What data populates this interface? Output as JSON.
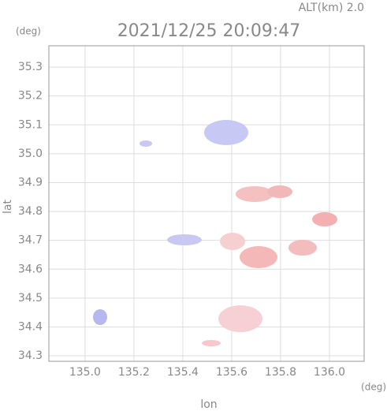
{
  "chart_data": {
    "type": "map",
    "title": "2021/12/25 20:09:47",
    "subtitle": "ALT(km) 2.0",
    "x_label": "lon",
    "y_label": "lat",
    "x_unit": "(deg)",
    "y_unit": "(deg)",
    "xlim": [
      134.852,
      136.142
    ],
    "ylim": [
      34.281,
      35.374
    ],
    "xticks": [
      {
        "value": 135,
        "label": "135.0"
      },
      135.2,
      135.4,
      135.6,
      135.8,
      {
        "value": 136,
        "label": "136.0"
      }
    ],
    "yticks": [
      35.3,
      35.2,
      35.1,
      {
        "value": 35,
        "label": "35.0"
      },
      34.9,
      34.8,
      34.7,
      34.6,
      34.5,
      34.4,
      34.3
    ],
    "grid": true
  }
}
